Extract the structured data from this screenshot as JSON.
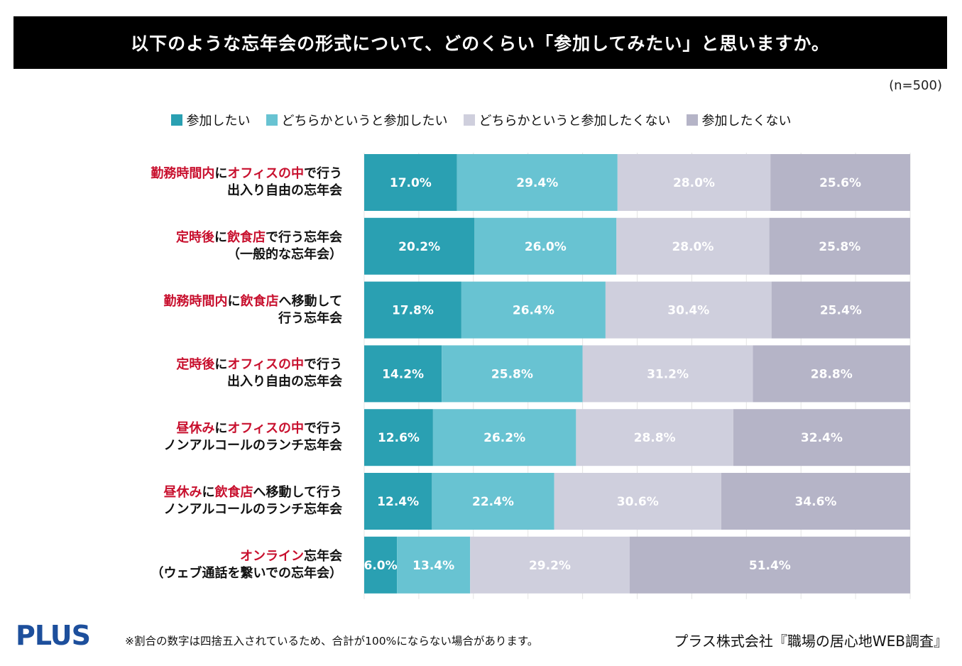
{
  "title": "以下のような忘年会の形式について、どのくらい「参加してみたい」と思いますか。",
  "sample_size": "(n=500)",
  "colors": [
    "#2aa0b2",
    "#68c3d2",
    "#cfcfdd",
    "#b5b4c7"
  ],
  "chart_data": {
    "type": "bar",
    "orientation": "horizontal",
    "stacked": true,
    "xlim": [
      0,
      100
    ],
    "legend_position": "top-center",
    "series": [
      {
        "name": "参加したい",
        "values": [
          17.0,
          20.2,
          17.8,
          14.2,
          12.6,
          12.4,
          6.0
        ]
      },
      {
        "name": "どちらかというと参加したい",
        "values": [
          29.4,
          26.0,
          26.4,
          25.8,
          26.2,
          22.4,
          13.4
        ]
      },
      {
        "name": "どちらかというと参加したくない",
        "values": [
          28.0,
          28.0,
          30.4,
          31.2,
          28.8,
          30.6,
          29.2
        ]
      },
      {
        "name": "参加したくない",
        "values": [
          25.6,
          25.8,
          25.4,
          28.8,
          32.4,
          34.6,
          51.4
        ]
      }
    ],
    "categories": [
      {
        "lines": [
          [
            {
              "t": "勤務時間内",
              "h": true
            },
            {
              "t": "に",
              "h": false
            },
            {
              "t": "オフィスの中",
              "h": true
            },
            {
              "t": "で行う",
              "h": false
            }
          ],
          [
            {
              "t": "出入り自由の忘年会",
              "h": false
            }
          ]
        ]
      },
      {
        "lines": [
          [
            {
              "t": "定時後",
              "h": true
            },
            {
              "t": "に",
              "h": false
            },
            {
              "t": "飲食店",
              "h": true
            },
            {
              "t": "で行う忘年会",
              "h": false
            }
          ],
          [
            {
              "t": "（一般的な忘年会）",
              "h": false
            }
          ]
        ]
      },
      {
        "lines": [
          [
            {
              "t": "勤務時間内",
              "h": true
            },
            {
              "t": "に",
              "h": false
            },
            {
              "t": "飲食店",
              "h": true
            },
            {
              "t": "へ移動して",
              "h": false
            }
          ],
          [
            {
              "t": "行う忘年会",
              "h": false
            }
          ]
        ]
      },
      {
        "lines": [
          [
            {
              "t": "定時後",
              "h": true
            },
            {
              "t": "に",
              "h": false
            },
            {
              "t": "オフィスの中",
              "h": true
            },
            {
              "t": "で行う",
              "h": false
            }
          ],
          [
            {
              "t": "出入り自由の忘年会",
              "h": false
            }
          ]
        ]
      },
      {
        "lines": [
          [
            {
              "t": "昼休み",
              "h": true
            },
            {
              "t": "に",
              "h": false
            },
            {
              "t": "オフィスの中",
              "h": true
            },
            {
              "t": "で行う",
              "h": false
            }
          ],
          [
            {
              "t": "ノンアルコールのランチ忘年会",
              "h": false
            }
          ]
        ]
      },
      {
        "lines": [
          [
            {
              "t": "昼休み",
              "h": true
            },
            {
              "t": "に",
              "h": false
            },
            {
              "t": "飲食店",
              "h": true
            },
            {
              "t": "へ移動して行う",
              "h": false
            }
          ],
          [
            {
              "t": "ノンアルコールのランチ忘年会",
              "h": false
            }
          ]
        ]
      },
      {
        "lines": [
          [
            {
              "t": "オンライン",
              "h": true
            },
            {
              "t": "忘年会",
              "h": false
            }
          ],
          [
            {
              "t": "（ウェブ通話を繋いでの忘年会）",
              "h": false
            }
          ]
        ]
      }
    ]
  },
  "footer": {
    "brand": "PLUS",
    "note": "※割合の数字は四捨五入されているため、合計が100%にならない場合があります。",
    "source": "プラス株式会社『職場の居心地WEB調査』"
  }
}
